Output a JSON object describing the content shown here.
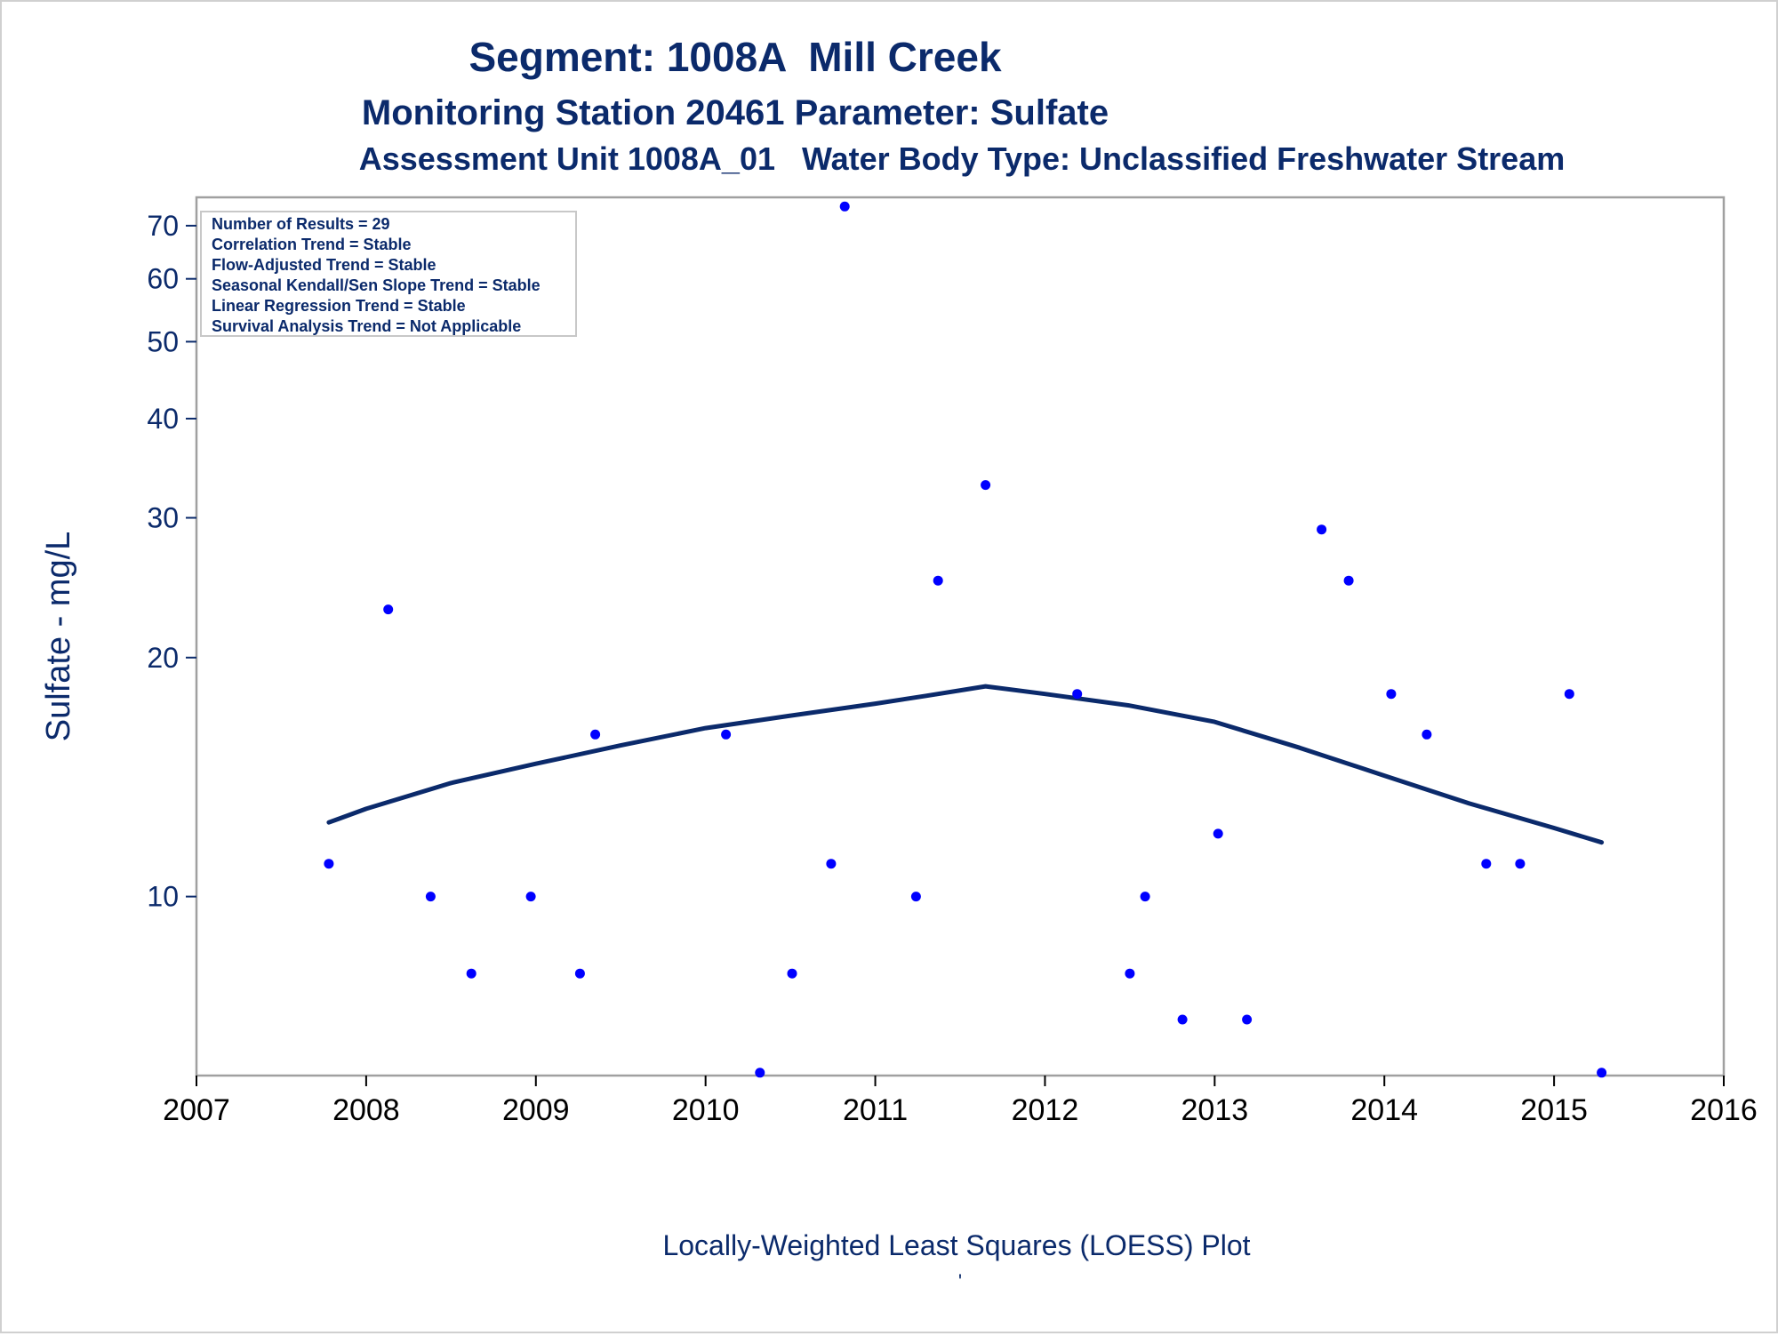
{
  "chart_data": {
    "type": "scatter",
    "title": "Segment: 1008A  Mill Creek",
    "subtitle": "Monitoring Station 20461 Parameter: Sulfate",
    "subtitle2": "Assessment Unit 1008A_01   Water Body Type: Unclassified Freshwater Stream",
    "xlabel": "Locally-Weighted Least Squares (LOESS) Plot",
    "ylabel": "Sulfate - mg/L",
    "footnote": "'",
    "x_scale": "linear",
    "y_scale": "log",
    "xlim": [
      2007,
      2016
    ],
    "ylim": [
      5.95,
      76
    ],
    "x_ticks": [
      2007,
      2008,
      2009,
      2010,
      2011,
      2012,
      2013,
      2014,
      2015,
      2016
    ],
    "x_tick_labels": [
      "2007",
      "2008",
      "2009",
      "2010",
      "2011",
      "2012",
      "2013",
      "2014",
      "2015",
      "2016"
    ],
    "y_ticks": [
      10,
      20,
      30,
      40,
      50,
      60,
      70
    ],
    "y_tick_labels": [
      "10",
      "20",
      "30",
      "40",
      "50",
      "60",
      "70"
    ],
    "grid": false,
    "legend_position": "top-left",
    "inset_lines": [
      "Number of Results = 29",
      "Correlation Trend = Stable",
      "Flow-Adjusted Trend = Stable",
      "Seasonal Kendall/Sen Slope Trend = Stable",
      "Linear Regression Trend = Stable",
      "Survival Analysis Trend = Not Applicable"
    ],
    "colors": {
      "points": "#0000ff",
      "loess": "#0b2a6b",
      "text": "#0b2a6b",
      "frame": "#a0a0a0"
    },
    "points": [
      {
        "x": 2007.78,
        "y": 11
      },
      {
        "x": 2008.13,
        "y": 23
      },
      {
        "x": 2008.38,
        "y": 10
      },
      {
        "x": 2008.62,
        "y": 8
      },
      {
        "x": 2008.97,
        "y": 10
      },
      {
        "x": 2009.26,
        "y": 8
      },
      {
        "x": 2009.35,
        "y": 16
      },
      {
        "x": 2010.12,
        "y": 16
      },
      {
        "x": 2010.32,
        "y": 6
      },
      {
        "x": 2010.51,
        "y": 8
      },
      {
        "x": 2010.74,
        "y": 11
      },
      {
        "x": 2010.82,
        "y": 74
      },
      {
        "x": 2011.24,
        "y": 10
      },
      {
        "x": 2011.37,
        "y": 25
      },
      {
        "x": 2011.65,
        "y": 33
      },
      {
        "x": 2012.19,
        "y": 18
      },
      {
        "x": 2012.5,
        "y": 8
      },
      {
        "x": 2012.59,
        "y": 10
      },
      {
        "x": 2012.81,
        "y": 7
      },
      {
        "x": 2013.02,
        "y": 12
      },
      {
        "x": 2013.19,
        "y": 7
      },
      {
        "x": 2013.63,
        "y": 29
      },
      {
        "x": 2013.79,
        "y": 25
      },
      {
        "x": 2014.04,
        "y": 18
      },
      {
        "x": 2014.25,
        "y": 16
      },
      {
        "x": 2014.6,
        "y": 11
      },
      {
        "x": 2014.8,
        "y": 11
      },
      {
        "x": 2015.09,
        "y": 18
      },
      {
        "x": 2015.28,
        "y": 6
      }
    ],
    "series": [
      {
        "type": "line",
        "x": [
          2007.78,
          2008.0,
          2008.5,
          2009.0,
          2009.5,
          2010.0,
          2010.5,
          2011.0,
          2011.3,
          2011.65,
          2012.0,
          2012.5,
          2013.0,
          2013.5,
          2014.0,
          2014.5,
          2015.0,
          2015.28
        ],
        "y": [
          12.4,
          12.9,
          13.9,
          14.7,
          15.5,
          16.3,
          16.9,
          17.5,
          17.9,
          18.4,
          18.0,
          17.4,
          16.6,
          15.4,
          14.2,
          13.1,
          12.2,
          11.7
        ]
      }
    ]
  }
}
